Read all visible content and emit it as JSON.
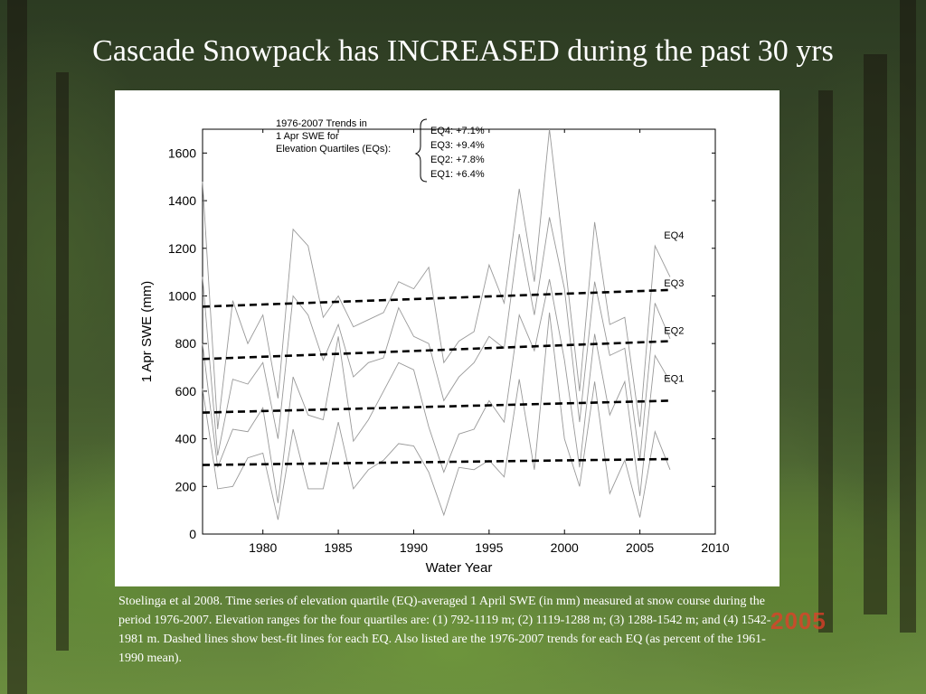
{
  "title": "Cascade Snowpack has INCREASED during the past 30 yrs",
  "caption": "Stoelinga et al 2008.  Time series of elevation quartile (EQ)-averaged 1 April SWE (in mm) measured at snow course during the period 1976-2007.  Elevation ranges for the four quartiles are: (1) 792-1119 m; (2) 1119-1288 m; (3) 1288-1542 m; and (4) 1542-1981 m.  Dashed lines show best-fit lines for each EQ.  Also listed are the 1976-2007 trends for each EQ (as percent of the 1961-1990 mean).",
  "photo_date_stamp": "2005",
  "chart_data": {
    "type": "line",
    "xlabel": "Water Year",
    "ylabel": "1 Apr SWE (mm)",
    "xlim": [
      1976,
      2010
    ],
    "ylim": [
      0,
      1700
    ],
    "xticks": [
      1980,
      1985,
      1990,
      1995,
      2000,
      2005,
      2010
    ],
    "yticks": [
      0,
      200,
      400,
      600,
      800,
      1000,
      1200,
      1400,
      1600
    ],
    "x": [
      1976,
      1977,
      1978,
      1979,
      1980,
      1981,
      1982,
      1983,
      1984,
      1985,
      1986,
      1987,
      1988,
      1989,
      1990,
      1991,
      1992,
      1993,
      1994,
      1995,
      1996,
      1997,
      1998,
      1999,
      2000,
      2001,
      2002,
      2003,
      2004,
      2005,
      2006,
      2007
    ],
    "series": [
      {
        "name": "EQ4",
        "values": [
          1480,
          440,
          980,
          800,
          920,
          570,
          1280,
          1210,
          910,
          1000,
          870,
          900,
          930,
          1060,
          1030,
          1120,
          720,
          810,
          850,
          1130,
          970,
          1450,
          1060,
          1700,
          1160,
          600,
          1310,
          880,
          910,
          450,
          1210,
          1080
        ],
        "trend": {
          "x": [
            1976,
            2007
          ],
          "y": [
            955,
            1025
          ]
        }
      },
      {
        "name": "EQ3",
        "values": [
          1080,
          330,
          650,
          630,
          720,
          400,
          1000,
          920,
          730,
          880,
          660,
          720,
          740,
          950,
          830,
          800,
          560,
          660,
          720,
          830,
          780,
          1260,
          920,
          1330,
          1030,
          470,
          1060,
          750,
          780,
          310,
          970,
          820
        ],
        "trend": {
          "x": [
            1976,
            2007
          ],
          "y": [
            735,
            810
          ]
        }
      },
      {
        "name": "EQ2",
        "values": [
          800,
          280,
          440,
          430,
          530,
          130,
          660,
          500,
          480,
          830,
          390,
          480,
          600,
          720,
          690,
          450,
          260,
          420,
          440,
          560,
          470,
          920,
          770,
          1070,
          730,
          280,
          840,
          500,
          640,
          160,
          750,
          640
        ],
        "trend": {
          "x": [
            1976,
            2007
          ],
          "y": [
            510,
            560
          ]
        }
      },
      {
        "name": "EQ1",
        "values": [
          610,
          190,
          200,
          320,
          340,
          60,
          440,
          190,
          190,
          470,
          190,
          270,
          310,
          380,
          370,
          260,
          80,
          280,
          270,
          310,
          240,
          650,
          270,
          930,
          400,
          200,
          640,
          170,
          310,
          70,
          430,
          270
        ],
        "trend": {
          "x": [
            1976,
            2007
          ],
          "y": [
            290,
            315
          ]
        }
      }
    ],
    "legend_box": {
      "heading": [
        "1976-2007 Trends in",
        "1 Apr SWE for",
        "Elevation Quartiles (EQs):"
      ],
      "entries": [
        "EQ4: +7.1%",
        "EQ3: +9.4%",
        "EQ2: +7.8%",
        "EQ1: +6.4%"
      ]
    },
    "line_labels": [
      "EQ4",
      "EQ3",
      "EQ2",
      "EQ1"
    ],
    "line_label_values": [
      1240,
      1040,
      840,
      640
    ],
    "data_color": "#999999",
    "trend_color": "#000000"
  }
}
